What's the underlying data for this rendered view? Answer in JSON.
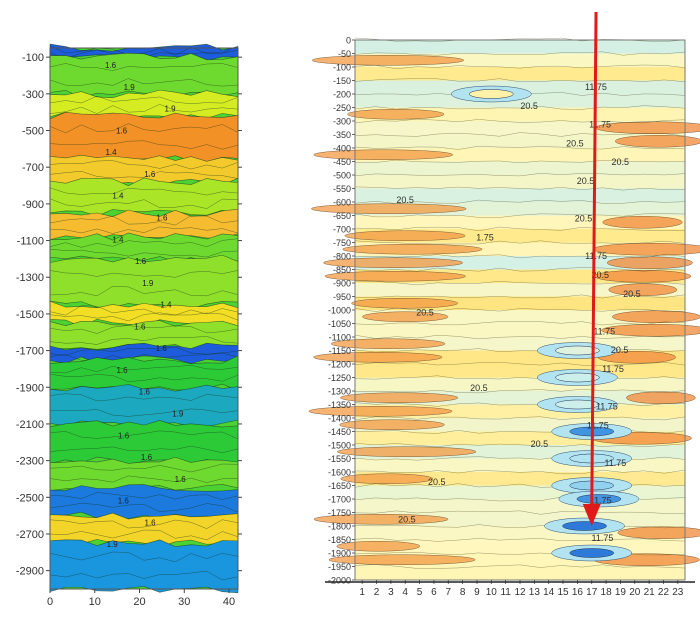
{
  "chart_data": [
    {
      "type": "heatmap",
      "title": "",
      "xlabel": "",
      "ylabel": "",
      "x_ticks": [
        "0",
        "10",
        "20",
        "30",
        "40"
      ],
      "xlim": [
        0,
        42
      ],
      "y_ticks": [
        "-100",
        "-300",
        "-500",
        "-700",
        "-900",
        "-1100",
        "-1300",
        "-1500",
        "-1700",
        "-1900",
        "-2100",
        "-2300",
        "-2500",
        "-2700",
        "-2900"
      ],
      "ylim": [
        -50,
        -3000
      ],
      "color_scale": [
        "#1e3fd8",
        "#1aa0e0",
        "#22c83a",
        "#8ee02a",
        "#f0f020",
        "#f5b830",
        "#f08020"
      ],
      "contour_labels": [
        "1.6",
        "1.9",
        "1.9",
        "1.6",
        "1.4",
        "1.6",
        "1.4",
        "1.6",
        "1.4",
        "1.6",
        "1.9",
        "1.4",
        "1.6",
        "1.6",
        "1.6",
        "1.6",
        "1.9",
        "1.6",
        "1.6",
        "1.6",
        "1.6",
        "1.6",
        "1.9"
      ],
      "bands": [
        {
          "depth": [
            -50,
            -100
          ],
          "level": 0.05
        },
        {
          "depth": [
            -100,
            -300
          ],
          "level": 0.45
        },
        {
          "depth": [
            -300,
            -420
          ],
          "level": 0.62
        },
        {
          "depth": [
            -420,
            -650
          ],
          "level": 0.95
        },
        {
          "depth": [
            -650,
            -780
          ],
          "level": 0.78
        },
        {
          "depth": [
            -780,
            -950
          ],
          "level": 0.55
        },
        {
          "depth": [
            -950,
            -1080
          ],
          "level": 0.82
        },
        {
          "depth": [
            -1080,
            -1200
          ],
          "level": 0.45
        },
        {
          "depth": [
            -1200,
            -1450
          ],
          "level": 0.5
        },
        {
          "depth": [
            -1450,
            -1550
          ],
          "level": 0.72
        },
        {
          "depth": [
            -1550,
            -1680
          ],
          "level": 0.5
        },
        {
          "depth": [
            -1680,
            -1750
          ],
          "level": 0.05
        },
        {
          "depth": [
            -1750,
            -1900
          ],
          "level": 0.35
        },
        {
          "depth": [
            -1900,
            -2100
          ],
          "level": 0.2
        },
        {
          "depth": [
            -2100,
            -2300
          ],
          "level": 0.35
        },
        {
          "depth": [
            -2300,
            -2450
          ],
          "level": 0.45
        },
        {
          "depth": [
            -2450,
            -2600
          ],
          "level": 0.1
        },
        {
          "depth": [
            -2600,
            -2750
          ],
          "level": 0.75
        },
        {
          "depth": [
            -2750,
            -3000
          ],
          "level": 0.15
        }
      ]
    },
    {
      "type": "heatmap",
      "title": "",
      "xlabel": "",
      "ylabel": "",
      "x_ticks": [
        "1",
        "2",
        "3",
        "4",
        "5",
        "6",
        "7",
        "8",
        "9",
        "10",
        "11",
        "12",
        "13",
        "14",
        "15",
        "16",
        "17",
        "18",
        "19",
        "20",
        "21",
        "22",
        "23"
      ],
      "y_ticks": [
        "0",
        "-50",
        "-100",
        "-150",
        "-200",
        "-250",
        "-300",
        "-350",
        "-400",
        "-450",
        "-500",
        "-550",
        "-600",
        "-650",
        "-700",
        "-750",
        "-800",
        "-850",
        "-900",
        "-950",
        "-1000",
        "-1050",
        "-1100",
        "-1150",
        "-1200",
        "-1250",
        "-1300",
        "-1350",
        "-1400",
        "-1450",
        "-1500",
        "-1550",
        "-1600",
        "-1650",
        "-1700",
        "-1750",
        "-1800",
        "-1850",
        "-1900",
        "-1950",
        "-2000"
      ],
      "ylim": [
        0,
        -2000
      ],
      "color_scale": [
        "#1a5fd0",
        "#5ab8ee",
        "#c8eef0",
        "#fff8c0",
        "#ffe070",
        "#f5b050",
        "#f07830"
      ],
      "contour_labels": [
        "11.75",
        "20.5",
        "11.75",
        "20.5",
        "20.5",
        "20.5",
        "20.5",
        "20.5",
        "1.75",
        "11.75",
        "20.5",
        "20.5",
        "20.5",
        "11.75",
        "20.5",
        "11.75",
        "20.5",
        "11.75",
        "11.75",
        "20.5",
        "11.75",
        "20.5",
        "11.75",
        "20.5",
        "11.75"
      ],
      "arrow": {
        "from": [
          17.3,
          0
        ],
        "to": [
          17.0,
          -1800
        ],
        "color": "#e01a1a"
      }
    }
  ]
}
